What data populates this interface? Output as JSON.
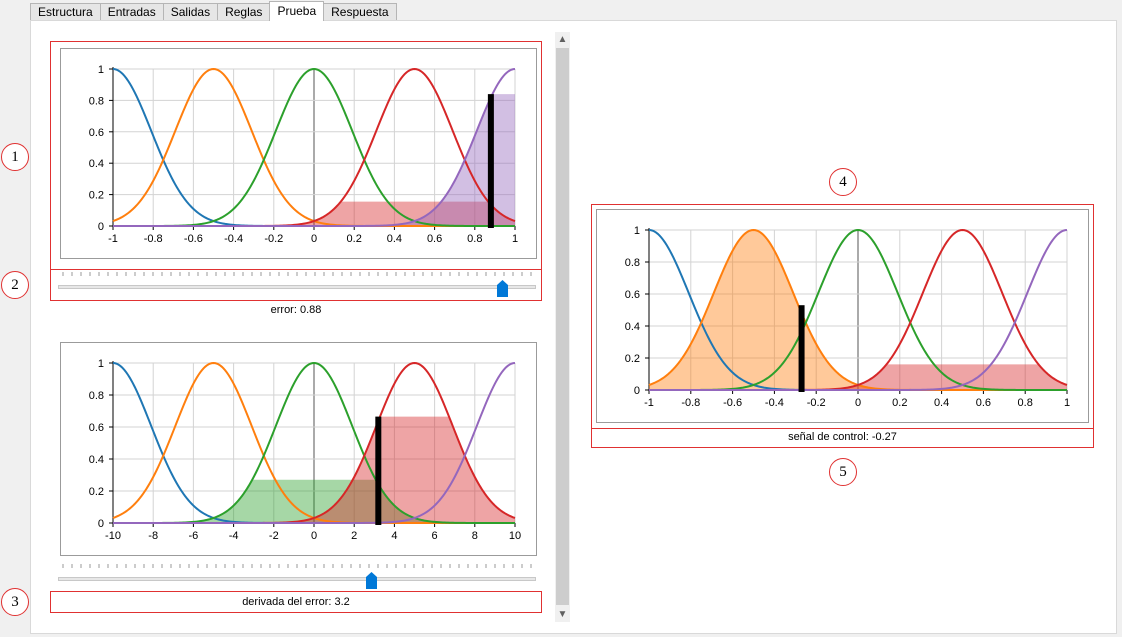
{
  "tabs": [
    {
      "label": "Estructura"
    },
    {
      "label": "Entradas"
    },
    {
      "label": "Salidas"
    },
    {
      "label": "Reglas"
    },
    {
      "label": "Prueba"
    },
    {
      "label": "Respuesta"
    }
  ],
  "active_tab": "Prueba",
  "markers": [
    "1",
    "2",
    "3",
    "4",
    "5"
  ],
  "error_label": "error: 0.88",
  "derivada_label": "derivada del error: 3.2",
  "control_label": "señal de control: -0.27",
  "error_slider": {
    "min": -1,
    "max": 1,
    "value": 0.88
  },
  "derivada_slider": {
    "min": -10,
    "max": 10,
    "value": 3.2
  },
  "colors": {
    "blue": "#1f77b4",
    "orange": "#ff7f0e",
    "green": "#2ca02c",
    "red": "#d62728",
    "purple": "#9467bd",
    "annot": "#e03131",
    "handle": "#0078d7"
  },
  "icons": {
    "scroll_up": "▲",
    "scroll_down": "▼"
  },
  "chart_data": [
    {
      "type": "line",
      "xlim": [
        -1,
        1
      ],
      "ylim": [
        0,
        1
      ],
      "x_ticks": [
        "-1",
        "-0.8",
        "-0.6",
        "-0.4",
        "-0.2",
        "0",
        "0.2",
        "0.4",
        "0.6",
        "0.8",
        "1"
      ],
      "y_ticks": [
        "0",
        "0.2",
        "0.4",
        "0.6",
        "0.8",
        "1"
      ],
      "membership_centers": [
        -1,
        -0.5,
        0,
        0.5,
        1
      ],
      "sigma": 0.19,
      "activations": [
        0,
        0,
        0,
        0.155,
        0.84
      ],
      "current_value": 0.88,
      "grid": true
    },
    {
      "type": "line",
      "xlim": [
        -10,
        10
      ],
      "ylim": [
        0,
        1
      ],
      "x_ticks": [
        "-10",
        "-8",
        "-6",
        "-4",
        "-2",
        "0",
        "2",
        "4",
        "6",
        "8",
        "10"
      ],
      "y_ticks": [
        "0",
        "0.2",
        "0.4",
        "0.6",
        "0.8",
        "1"
      ],
      "membership_centers": [
        -10,
        -5,
        0,
        5,
        10
      ],
      "sigma": 1.9,
      "activations": [
        0,
        0,
        0.27,
        0.665,
        0
      ],
      "current_value": 3.2,
      "grid": true
    },
    {
      "type": "line",
      "xlim": [
        -1,
        1
      ],
      "ylim": [
        0,
        1
      ],
      "x_ticks": [
        "-1",
        "-0.8",
        "-0.6",
        "-0.4",
        "-0.2",
        "0",
        "0.2",
        "0.4",
        "0.6",
        "0.8",
        "1"
      ],
      "y_ticks": [
        "0",
        "0.2",
        "0.4",
        "0.6",
        "0.8",
        "1"
      ],
      "membership_centers": [
        -1,
        -0.5,
        0,
        0.5,
        1
      ],
      "sigma": 0.19,
      "activations": [
        0,
        1,
        0,
        0.16,
        0
      ],
      "current_value": -0.27,
      "grid": true
    }
  ]
}
